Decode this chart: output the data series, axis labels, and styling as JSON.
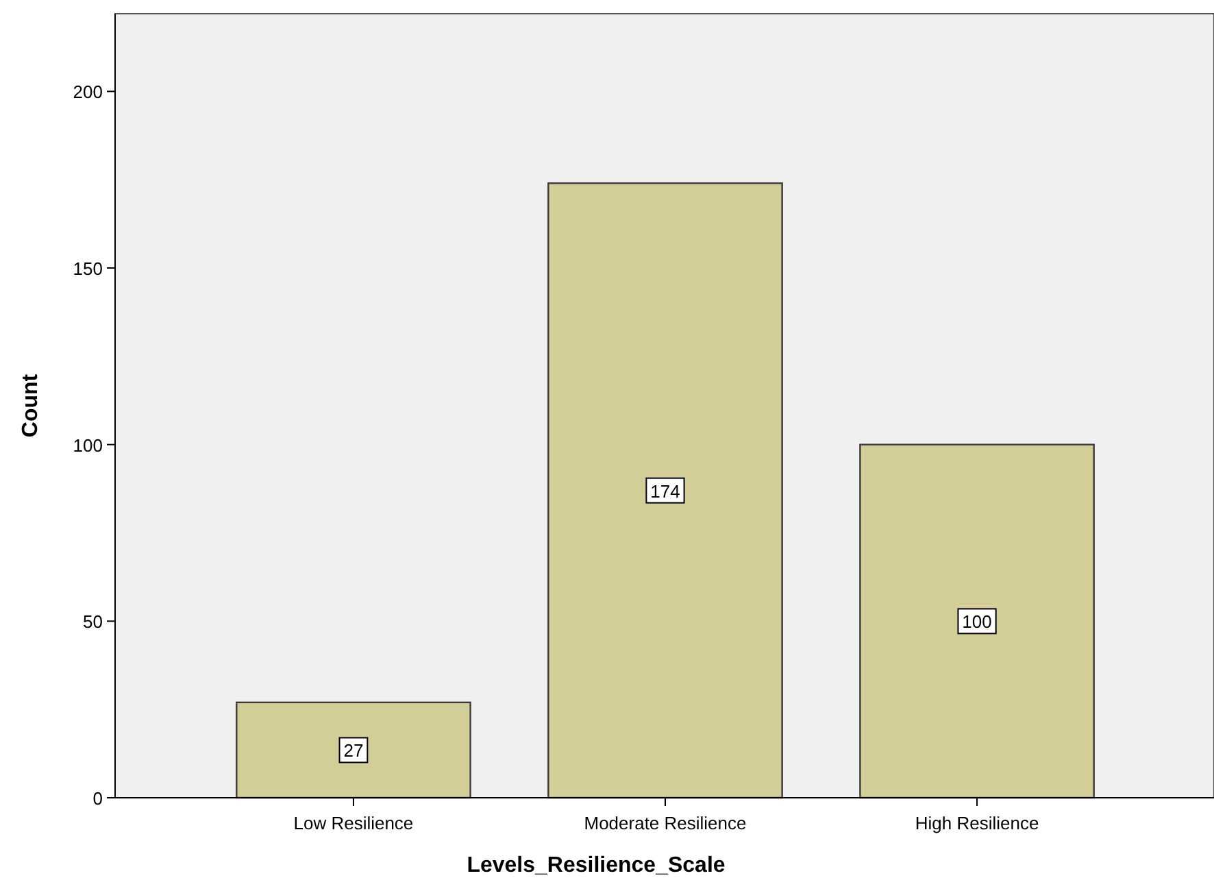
{
  "chart_data": {
    "type": "bar",
    "xlabel": "Levels_Resilience_Scale",
    "ylabel": "Count",
    "categories": [
      "Low Resilience",
      "Moderate Resilience",
      "High Resilience"
    ],
    "values": [
      27,
      174,
      100
    ],
    "color": "#d3ce98",
    "ylim": [
      0,
      222
    ],
    "yticks": [
      0,
      50,
      100,
      150,
      200
    ],
    "grid": false,
    "data_labels": true
  }
}
